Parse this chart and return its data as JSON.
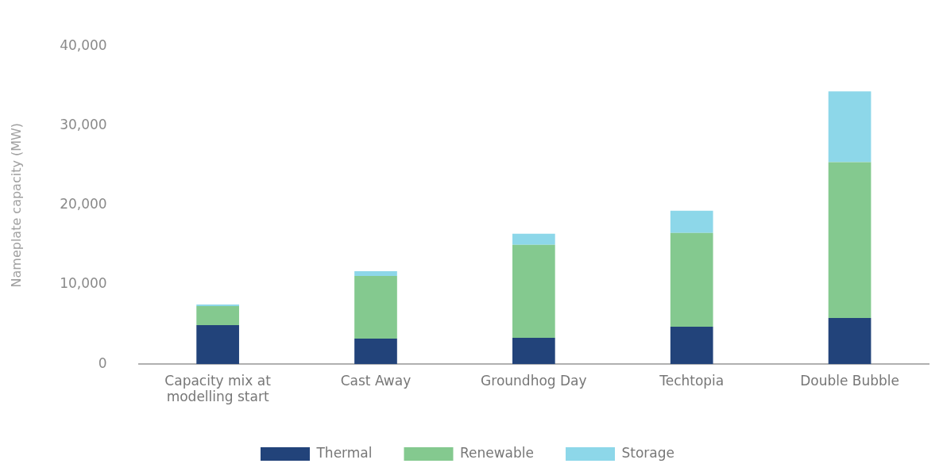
{
  "chart_data": {
    "type": "bar",
    "stacked": true,
    "ylabel": "Nameplate capacity (MW)",
    "categories": [
      "Capacity mix at modelling start",
      "Cast Away",
      "Groundhog Day",
      "Techtopia",
      "Double Bubble"
    ],
    "series": [
      {
        "name": "Thermal",
        "color": "#22437a",
        "values": [
          4900,
          3200,
          3300,
          4700,
          5800
        ]
      },
      {
        "name": "Renewable",
        "color": "#84c98f",
        "values": [
          2400,
          7900,
          11700,
          11800,
          19600
        ]
      },
      {
        "name": "Storage",
        "color": "#8dd7e9",
        "values": [
          200,
          600,
          1400,
          2800,
          8900
        ]
      }
    ],
    "ylim": [
      0,
      40000
    ],
    "yticks": [
      0,
      {
        "value": 10000,
        "label": "10,000"
      },
      {
        "value": 20000,
        "label": "20,000"
      },
      {
        "value": 30000,
        "label": "30,000"
      },
      {
        "value": 40000,
        "label": "40,000"
      }
    ],
    "grid": false,
    "legend": "bottom"
  }
}
